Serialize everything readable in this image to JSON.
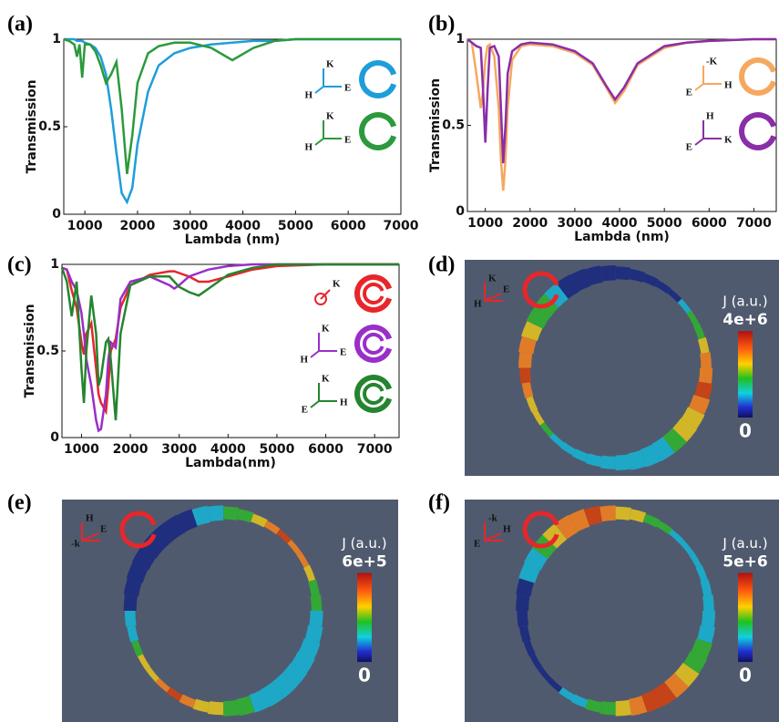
{
  "chart_data": [
    {
      "type": "line",
      "panel_label": "(a)",
      "x_label": "Lambda (nm)",
      "y_label": "Transmission",
      "xlim": [
        600,
        7000
      ],
      "xticks": [
        1000,
        2000,
        3000,
        4000,
        5000,
        6000,
        7000
      ],
      "ylim": [
        0,
        1
      ],
      "yticks": [
        0,
        0.5,
        1
      ],
      "x": [
        600,
        700,
        800,
        850,
        900,
        950,
        1000,
        1100,
        1200,
        1300,
        1400,
        1500,
        1600,
        1700,
        1800,
        1900,
        2000,
        2200,
        2400,
        2700,
        3000,
        3400,
        3800,
        4200,
        4600,
        5000,
        5500,
        6000,
        7000
      ],
      "series": [
        {
          "color": "#1e9ed8",
          "values": [
            1,
            1,
            1,
            0.99,
            0.99,
            0.99,
            0.98,
            0.97,
            0.95,
            0.9,
            0.8,
            0.6,
            0.35,
            0.12,
            0.07,
            0.15,
            0.4,
            0.7,
            0.85,
            0.92,
            0.95,
            0.97,
            0.98,
            0.99,
            0.99,
            1,
            1,
            1,
            1
          ]
        },
        {
          "color": "#2b9a3c",
          "values": [
            1,
            0.99,
            0.97,
            0.9,
            0.97,
            0.78,
            0.97,
            0.97,
            0.93,
            0.85,
            0.75,
            0.8,
            0.87,
            0.6,
            0.23,
            0.45,
            0.75,
            0.92,
            0.96,
            0.98,
            0.98,
            0.95,
            0.88,
            0.95,
            0.99,
            1,
            1,
            1,
            1
          ]
        }
      ],
      "legend_icons": [
        [
          "K",
          "H",
          "E"
        ],
        [
          "K",
          "H",
          "E"
        ]
      ]
    },
    {
      "type": "line",
      "panel_label": "(b)",
      "x_label": "Lambda (nm)",
      "y_label": "Transmission",
      "xlim": [
        600,
        7500
      ],
      "xticks": [
        1000,
        2000,
        3000,
        4000,
        5000,
        6000,
        7000
      ],
      "ylim": [
        0,
        1
      ],
      "yticks": [
        0,
        0.5,
        1
      ],
      "x": [
        600,
        700,
        800,
        900,
        950,
        1000,
        1050,
        1100,
        1200,
        1300,
        1350,
        1400,
        1450,
        1500,
        1600,
        1800,
        2000,
        2500,
        3000,
        3400,
        3700,
        3900,
        4100,
        4400,
        5000,
        5500,
        6000,
        7000,
        7500
      ],
      "series": [
        {
          "color": "#f6a860",
          "values": [
            1,
            0.98,
            0.8,
            0.6,
            0.7,
            0.88,
            0.96,
            0.97,
            0.9,
            0.6,
            0.3,
            0.12,
            0.3,
            0.6,
            0.88,
            0.96,
            0.97,
            0.96,
            0.92,
            0.85,
            0.72,
            0.63,
            0.7,
            0.85,
            0.95,
            0.98,
            0.99,
            1,
            1
          ]
        },
        {
          "color": "#8a2ea8",
          "values": [
            1,
            0.98,
            0.96,
            0.95,
            0.7,
            0.4,
            0.7,
            0.95,
            0.96,
            0.9,
            0.6,
            0.28,
            0.5,
            0.8,
            0.93,
            0.97,
            0.98,
            0.97,
            0.93,
            0.86,
            0.73,
            0.65,
            0.72,
            0.86,
            0.96,
            0.98,
            0.99,
            1,
            1
          ]
        }
      ],
      "legend_icons": [
        [
          "-K",
          "E",
          "H"
        ],
        [
          "H",
          "E",
          "K"
        ]
      ]
    },
    {
      "type": "line",
      "panel_label": "(c)",
      "x_label": "Lambda(nm)",
      "y_label": "Transmission",
      "xlim": [
        600,
        7500
      ],
      "xticks": [
        1000,
        2000,
        3000,
        4000,
        5000,
        6000,
        7000
      ],
      "ylim": [
        0,
        1
      ],
      "yticks": [
        0,
        0.5,
        1
      ],
      "x": [
        600,
        700,
        800,
        900,
        1000,
        1050,
        1100,
        1200,
        1300,
        1350,
        1400,
        1500,
        1550,
        1600,
        1700,
        1800,
        2000,
        2400,
        2800,
        2900,
        3000,
        3200,
        3400,
        3600,
        4000,
        4500,
        5000,
        6000,
        7500
      ],
      "series": [
        {
          "color": "#e8262a",
          "values": [
            0.98,
            0.97,
            0.85,
            0.75,
            0.55,
            0.48,
            0.6,
            0.66,
            0.4,
            0.25,
            0.2,
            0.15,
            0.3,
            0.5,
            0.57,
            0.75,
            0.88,
            0.94,
            0.96,
            0.96,
            0.95,
            0.93,
            0.9,
            0.9,
            0.93,
            0.97,
            0.99,
            1,
            1
          ]
        },
        {
          "color": "#9a2ec8",
          "values": [
            0.98,
            0.97,
            0.9,
            0.85,
            0.72,
            0.6,
            0.45,
            0.3,
            0.1,
            0.04,
            0.05,
            0.25,
            0.45,
            0.55,
            0.52,
            0.8,
            0.9,
            0.93,
            0.88,
            0.86,
            0.88,
            0.93,
            0.95,
            0.97,
            0.99,
            1,
            1,
            1,
            1
          ]
        },
        {
          "color": "#24852e",
          "values": [
            0.98,
            0.9,
            0.7,
            0.9,
            0.4,
            0.2,
            0.5,
            0.82,
            0.6,
            0.3,
            0.35,
            0.55,
            0.57,
            0.45,
            0.1,
            0.6,
            0.88,
            0.93,
            0.93,
            0.9,
            0.87,
            0.84,
            0.82,
            0.86,
            0.94,
            0.98,
            1,
            1,
            1
          ]
        }
      ],
      "legend_icons": [
        [
          "K"
        ],
        [
          "K",
          "H",
          "E"
        ],
        [
          "K",
          "E",
          "H"
        ]
      ]
    }
  ],
  "field_maps": [
    {
      "panel_label": "(d)",
      "axes": [
        "K",
        "E",
        "H"
      ],
      "colorbar": {
        "title": "J (a.u.)",
        "max": {
          "value": 4000000,
          "label": "4e+6"
        },
        "min": 0
      }
    },
    {
      "panel_label": "(e)",
      "axes": [
        "H",
        "E",
        "-k"
      ],
      "colorbar": {
        "title": "J (a.u.)",
        "max": {
          "value": 600000,
          "label": "6e+5"
        },
        "min": 0
      }
    },
    {
      "panel_label": "(f)",
      "axes": [
        "-k",
        "H",
        "E"
      ],
      "colorbar": {
        "title": "J (a.u.)",
        "max": {
          "value": 5000000,
          "label": "5e+6"
        },
        "min": 0
      }
    }
  ]
}
